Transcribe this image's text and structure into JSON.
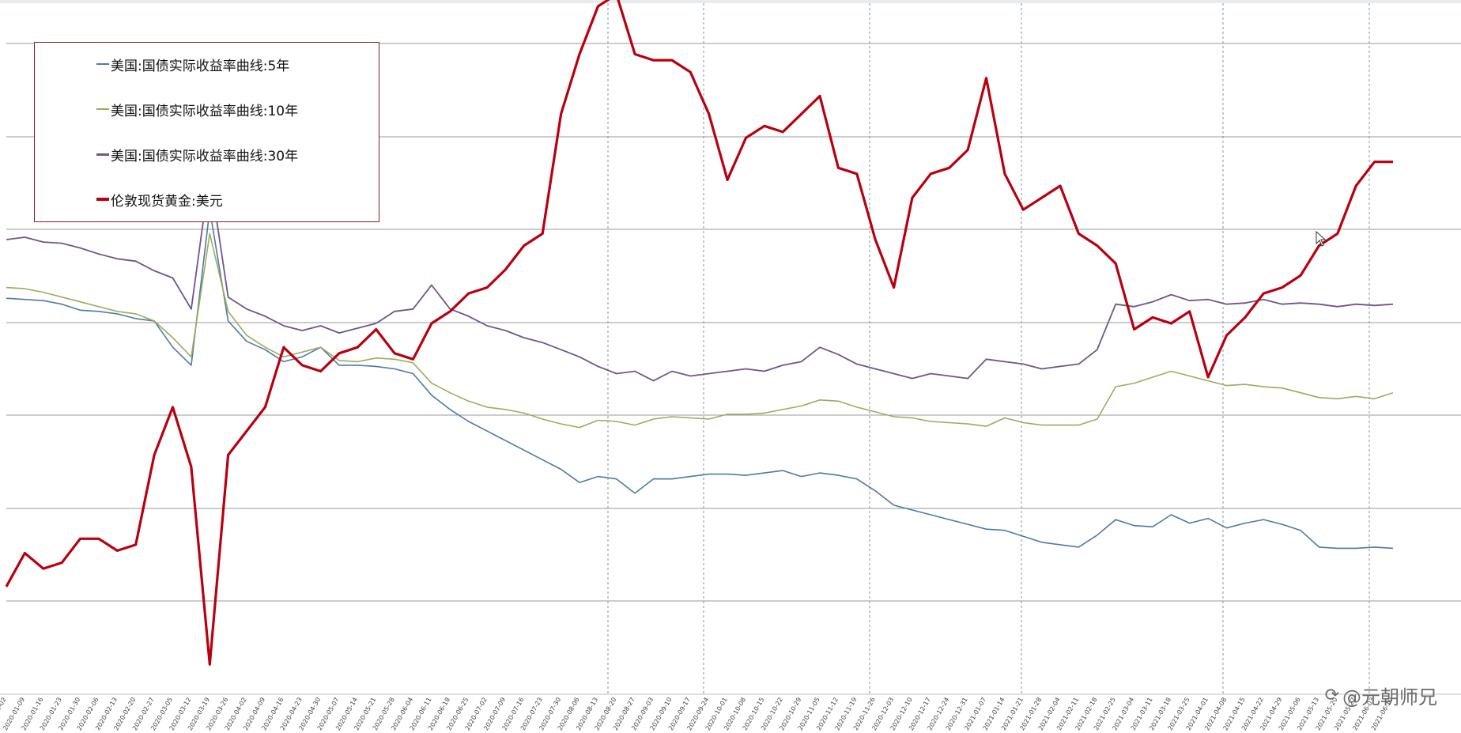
{
  "chart_data": {
    "type": "line",
    "title": "",
    "xlabel": "",
    "ylabel": "",
    "legend_position": "top-left",
    "grid": {
      "horizontal": true,
      "vertical_dashed": true
    },
    "x_dates": [
      "2020-01-02",
      "2020-01-09",
      "2020-01-16",
      "2020-01-23",
      "2020-01-30",
      "2020-02-06",
      "2020-02-13",
      "2020-02-20",
      "2020-02-27",
      "2020-03-05",
      "2020-03-12",
      "2020-03-19",
      "2020-03-26",
      "2020-04-02",
      "2020-04-09",
      "2020-04-16",
      "2020-04-23",
      "2020-04-30",
      "2020-05-07",
      "2020-05-14",
      "2020-05-21",
      "2020-05-28",
      "2020-06-04",
      "2020-06-11",
      "2020-06-18",
      "2020-06-25",
      "2020-07-02",
      "2020-07-09",
      "2020-07-16",
      "2020-07-23",
      "2020-07-30",
      "2020-08-06",
      "2020-08-13",
      "2020-08-20",
      "2020-08-27",
      "2020-09-03",
      "2020-09-10",
      "2020-09-17",
      "2020-09-24",
      "2020-10-01",
      "2020-10-08",
      "2020-10-15",
      "2020-10-22",
      "2020-10-29",
      "2020-11-05",
      "2020-11-12",
      "2020-11-19",
      "2020-11-26",
      "2020-12-03",
      "2020-12-10",
      "2020-12-17",
      "2020-12-24",
      "2020-12-31",
      "2021-01-07",
      "2021-01-14",
      "2021-01-21",
      "2021-01-28",
      "2021-02-04",
      "2021-02-11",
      "2021-02-18",
      "2021-02-25",
      "2021-03-04",
      "2021-03-11",
      "2021-03-18",
      "2021-03-25",
      "2021-04-01",
      "2021-04-08",
      "2021-04-15",
      "2021-04-22",
      "2021-04-29",
      "2021-05-06",
      "2021-05-13",
      "2021-05-20",
      "2021-05-27",
      "2021-06-03",
      "2021-06-10"
    ],
    "series": [
      {
        "name": "美国:国债实际收益率曲线:5年",
        "color": "#4e79a7",
        "width": 1.6,
        "values": [
          0.01,
          0.0,
          -0.01,
          -0.04,
          -0.09,
          -0.1,
          -0.12,
          -0.16,
          -0.18,
          -0.4,
          -0.55,
          0.75,
          -0.18,
          -0.35,
          -0.42,
          -0.52,
          -0.48,
          -0.4,
          -0.55,
          -0.55,
          -0.56,
          -0.58,
          -0.62,
          -0.8,
          -0.92,
          -1.02,
          -1.1,
          -1.18,
          -1.26,
          -1.34,
          -1.42,
          -1.53,
          -1.48,
          -1.5,
          -1.62,
          -1.5,
          -1.5,
          -1.48,
          -1.46,
          -1.46,
          -1.47,
          -1.45,
          -1.43,
          -1.48,
          -1.45,
          -1.47,
          -1.5,
          -1.6,
          -1.72,
          -1.76,
          -1.8,
          -1.84,
          -1.88,
          -1.92,
          -1.93,
          -1.98,
          -2.03,
          -2.05,
          -2.07,
          -1.97,
          -1.84,
          -1.89,
          -1.9,
          -1.8,
          -1.87,
          -1.83,
          -1.91,
          -1.87,
          -1.84,
          -1.88,
          -1.93,
          -2.07,
          -2.08,
          -2.08,
          -2.07,
          -2.08
        ]
      },
      {
        "name": "美国:国债实际收益率曲线:10年",
        "color": "#9aad5c",
        "width": 1.6,
        "values": [
          0.1,
          0.09,
          0.06,
          0.02,
          -0.02,
          -0.06,
          -0.1,
          -0.12,
          -0.18,
          -0.32,
          -0.48,
          0.55,
          -0.1,
          -0.3,
          -0.4,
          -0.48,
          -0.44,
          -0.4,
          -0.51,
          -0.52,
          -0.49,
          -0.5,
          -0.53,
          -0.7,
          -0.78,
          -0.85,
          -0.9,
          -0.92,
          -0.95,
          -1.0,
          -1.04,
          -1.07,
          -1.01,
          -1.02,
          -1.05,
          -1.0,
          -0.98,
          -0.99,
          -1.0,
          -0.96,
          -0.96,
          -0.95,
          -0.92,
          -0.89,
          -0.84,
          -0.85,
          -0.9,
          -0.94,
          -0.98,
          -0.99,
          -1.02,
          -1.03,
          -1.04,
          -1.06,
          -0.99,
          -1.03,
          -1.05,
          -1.05,
          -1.05,
          -1.0,
          -0.73,
          -0.7,
          -0.65,
          -0.6,
          -0.64,
          -0.68,
          -0.72,
          -0.71,
          -0.73,
          -0.74,
          -0.78,
          -0.82,
          -0.83,
          -0.81,
          -0.83,
          -0.78
        ]
      },
      {
        "name": "美国:国债实际收益率曲线:30年",
        "color": "#6f5590",
        "width": 1.8,
        "values": [
          0.5,
          0.52,
          0.48,
          0.47,
          0.43,
          0.38,
          0.34,
          0.32,
          0.24,
          0.18,
          -0.08,
          1.05,
          0.02,
          -0.08,
          -0.14,
          -0.22,
          -0.26,
          -0.22,
          -0.28,
          -0.24,
          -0.2,
          -0.1,
          -0.08,
          0.12,
          -0.08,
          -0.14,
          -0.22,
          -0.26,
          -0.32,
          -0.36,
          -0.42,
          -0.48,
          -0.56,
          -0.62,
          -0.6,
          -0.68,
          -0.6,
          -0.64,
          -0.62,
          -0.6,
          -0.58,
          -0.6,
          -0.55,
          -0.52,
          -0.4,
          -0.46,
          -0.54,
          -0.58,
          -0.62,
          -0.66,
          -0.62,
          -0.64,
          -0.66,
          -0.5,
          -0.52,
          -0.54,
          -0.58,
          -0.56,
          -0.54,
          -0.42,
          -0.04,
          -0.06,
          -0.02,
          0.04,
          -0.01,
          0.0,
          -0.04,
          -0.03,
          0.0,
          -0.04,
          -0.03,
          -0.04,
          -0.06,
          -0.04,
          -0.05,
          -0.04
        ]
      },
      {
        "name": "伦敦现货黄金:美元",
        "color": "#b8000f",
        "width": 3.2,
        "values": [
          -2.4,
          -2.12,
          -2.25,
          -2.2,
          -2.0,
          -2.0,
          -2.1,
          -2.05,
          -1.3,
          -0.9,
          -1.4,
          -3.05,
          -1.3,
          -1.1,
          -0.9,
          -0.4,
          -0.55,
          -0.6,
          -0.45,
          -0.4,
          -0.25,
          -0.45,
          -0.5,
          -0.2,
          -0.1,
          0.05,
          0.1,
          0.25,
          0.45,
          0.55,
          1.55,
          2.05,
          2.45,
          2.55,
          2.05,
          2.0,
          2.0,
          1.9,
          1.55,
          1.0,
          1.35,
          1.45,
          1.4,
          1.55,
          1.7,
          1.1,
          1.05,
          0.5,
          0.1,
          0.85,
          1.05,
          1.1,
          1.25,
          1.85,
          1.05,
          0.75,
          0.85,
          0.95,
          0.55,
          0.45,
          0.3,
          -0.25,
          -0.15,
          -0.2,
          -0.1,
          -0.65,
          -0.3,
          -0.15,
          0.05,
          0.1,
          0.2,
          0.45,
          0.55,
          0.95,
          1.15,
          1.15
        ]
      }
    ],
    "ylim": [
      -3.3,
      2.45
    ]
  },
  "axis": {
    "tick_labels": [
      "2020-01-02",
      "2020-01-09",
      "2020-01-16",
      "2020-01-23",
      "2020-01-30",
      "2020-02-06",
      "2020-02-13",
      "2020-02-20",
      "2020-02-27",
      "2020-03-05",
      "2020-03-12",
      "2020-03-19",
      "2020-03-26",
      "2020-04-02",
      "2020-04-09",
      "2020-04-16",
      "2020-04-23",
      "2020-04-30",
      "2020-05-07",
      "2020-05-14",
      "2020-05-21",
      "2020-05-28",
      "2020-06-04",
      "2020-06-11",
      "2020-06-18",
      "2020-06-25",
      "2020-07-02",
      "2020-07-09",
      "2020-07-16",
      "2020-07-23",
      "2020-07-30",
      "2020-08-06",
      "2020-08-13",
      "2020-08-20",
      "2020-08-27",
      "2020-09-03",
      "2020-09-10",
      "2020-09-17",
      "2020-09-24",
      "2020-10-01",
      "2020-10-08",
      "2020-10-15",
      "2020-10-22",
      "2020-10-29",
      "2020-11-05",
      "2020-11-12",
      "2020-11-19",
      "2020-11-26",
      "2020-12-03",
      "2020-12-10",
      "2020-12-17",
      "2020-12-24",
      "2020-12-31",
      "2021-01-07",
      "2021-01-14",
      "2021-01-21",
      "2021-01-28",
      "2021-02-04",
      "2021-02-11",
      "2021-02-18",
      "2021-02-25",
      "2021-03-04",
      "2021-03-11",
      "2021-03-18",
      "2021-03-25",
      "2021-04-01",
      "2021-04-08",
      "2021-04-15",
      "2021-04-22",
      "2021-04-29",
      "2021-05-06",
      "2021-05-13",
      "2021-05-20",
      "2021-05-27",
      "2021-06-03",
      "2021-06-10"
    ]
  },
  "legend": {
    "items": [
      {
        "label": "美国:国债实际收益率曲线:5年",
        "color": "#4e79a7"
      },
      {
        "label": "美国:国债实际收益率曲线:10年",
        "color": "#9aad5c"
      },
      {
        "label": "美国:国债实际收益率曲线:30年",
        "color": "#6f5590"
      },
      {
        "label": "伦敦现货黄金:美元",
        "color": "#b8000f"
      }
    ]
  },
  "watermark": {
    "icon": "refresh-icon",
    "text": "@元朝师兄"
  },
  "colors": {
    "grid": "#9a9a9a",
    "vline": "#7f96ad",
    "legend_border": "#8c1a2a"
  }
}
